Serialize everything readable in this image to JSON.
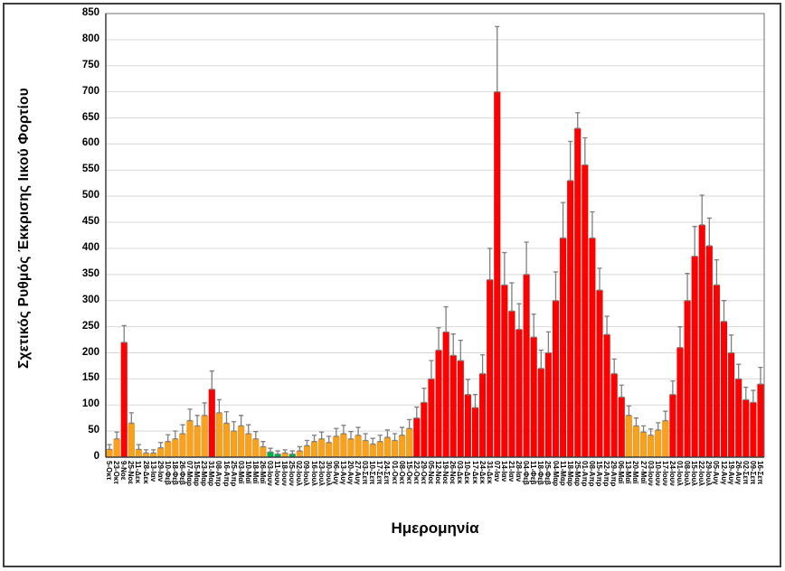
{
  "figure": {
    "background": "#ffffff",
    "frame_border_color": "#3f3f3f"
  },
  "chart_data": {
    "type": "bar",
    "title": "",
    "xlabel": "Ημερομηνία",
    "ylabel": "Σχετικός Ρυθμός Έκκρισης Ιικού Φορτίου",
    "ylim": [
      0,
      850
    ],
    "ytick_step": 50,
    "yticks": [
      0,
      50,
      100,
      150,
      200,
      250,
      300,
      350,
      400,
      450,
      500,
      550,
      600,
      650,
      700,
      750,
      800,
      850
    ],
    "grid": "horizontal",
    "legend_position": "none",
    "error_bars": true,
    "colors": {
      "high": "#FF0000",
      "medium": "#F9A11B",
      "low": "#00B050",
      "error": "#7F7F7F",
      "grid": "#D8D8D8",
      "plot_border": "#6e6e6e",
      "axis": "#3f3f3f"
    },
    "level_names": {
      "h": "high (red)",
      "m": "medium (orange)",
      "l": "low (green)"
    },
    "categories": [
      "5-Οκτ",
      "23-Οκτ",
      "9-Νοε",
      "25-Νοε",
      "11-Δεκ",
      "28-Δεκ",
      "13-Ιαν",
      "29-Ιαν",
      "10-Φεβ",
      "18-Φεβ",
      "26-Φεβ",
      "07-Μαρ",
      "15-Μαρ",
      "23-Μαρ",
      "31-Μαρ",
      "08-Απρ",
      "16-Απρ",
      "25-Απρ",
      "03-Μαϊ",
      "10-Μαϊ",
      "18-Μαϊ",
      "26-Μαϊ",
      "03-Ιουν",
      "11-Ιουν",
      "18-Ιουν",
      "25-Ιουν",
      "02-Ιουλ",
      "09-Ιουλ",
      "16-Ιουλ",
      "23-Ιουλ",
      "30-Ιουλ",
      "06-Αυγ",
      "13-Αυγ",
      "20-Αυγ",
      "27-Αυγ",
      "03-Σεπ",
      "10-Σεπ",
      "17-Σεπ",
      "24-Σεπ",
      "01-Οκτ",
      "08-Οκτ",
      "15-Οκτ",
      "22-Οκτ",
      "29-Οκτ",
      "05-Νοε",
      "12-Νοε",
      "19-Νοε",
      "26-Νοε",
      "03-Δεκ",
      "10-Δεκ",
      "17-Δεκ",
      "24-Δεκ",
      "31-Δεκ",
      "07-Ιαν",
      "14-Ιαν",
      "21-Ιαν",
      "28-Ιαν",
      "04-Φεβ",
      "11-Φεβ",
      "18-Φεβ",
      "25-Φεβ",
      "04-Μαρ",
      "11-Μαρ",
      "18-Μαρ",
      "25-Μαρ",
      "01-Απρ",
      "08-Απρ",
      "15-Απρ",
      "22-Απρ",
      "29-Απρ",
      "06-Μαϊ",
      "13-Μαϊ",
      "20-Μαϊ",
      "27-Μαϊ",
      "03-Ιουν",
      "10-Ιουν",
      "17-Ιουν",
      "24-Ιουν",
      "01-Ιουλ",
      "08-Ιουλ",
      "15-Ιουλ",
      "22-Ιουλ",
      "29-Ιουλ",
      "05-Αυγ",
      "12-Αυγ",
      "19-Αυγ",
      "26-Αυγ",
      "02-Σεπ",
      "09-Σεπ",
      "16-Σεπ"
    ],
    "values": [
      15,
      35,
      220,
      65,
      15,
      8,
      8,
      18,
      30,
      35,
      45,
      70,
      60,
      80,
      130,
      85,
      65,
      50,
      60,
      45,
      35,
      20,
      10,
      6,
      8,
      6,
      12,
      22,
      30,
      35,
      28,
      40,
      45,
      35,
      42,
      32,
      25,
      30,
      38,
      32,
      42,
      55,
      75,
      105,
      150,
      205,
      240,
      195,
      185,
      120,
      95,
      160,
      340,
      700,
      330,
      280,
      245,
      350,
      230,
      170,
      200,
      300,
      420,
      530,
      630,
      560,
      420,
      320,
      235,
      160,
      115,
      80,
      60,
      48,
      42,
      52,
      70,
      120,
      210,
      300,
      385,
      445,
      405,
      330,
      260,
      200,
      150,
      110,
      105,
      140
    ],
    "error_upper": [
      24,
      48,
      252,
      85,
      24,
      14,
      14,
      28,
      43,
      50,
      62,
      92,
      80,
      104,
      165,
      110,
      87,
      68,
      80,
      62,
      49,
      30,
      17,
      12,
      14,
      12,
      20,
      32,
      42,
      48,
      40,
      55,
      61,
      49,
      57,
      45,
      36,
      42,
      52,
      45,
      57,
      72,
      96,
      132,
      185,
      248,
      288,
      236,
      224,
      149,
      120,
      196,
      400,
      825,
      392,
      334,
      294,
      412,
      274,
      205,
      240,
      355,
      488,
      605,
      660,
      612,
      470,
      362,
      270,
      188,
      138,
      98,
      75,
      60,
      54,
      66,
      88,
      146,
      250,
      352,
      442,
      502,
      458,
      378,
      300,
      234,
      178,
      134,
      128,
      172
    ],
    "levels": [
      "m",
      "m",
      "h",
      "m",
      "m",
      "m",
      "m",
      "m",
      "m",
      "m",
      "m",
      "m",
      "m",
      "m",
      "h",
      "m",
      "m",
      "m",
      "m",
      "m",
      "m",
      "m",
      "l",
      "l",
      "m",
      "l",
      "m",
      "m",
      "m",
      "m",
      "m",
      "m",
      "m",
      "m",
      "m",
      "m",
      "m",
      "m",
      "m",
      "m",
      "m",
      "m",
      "h",
      "h",
      "h",
      "h",
      "h",
      "h",
      "h",
      "h",
      "h",
      "h",
      "h",
      "h",
      "h",
      "h",
      "h",
      "h",
      "h",
      "h",
      "h",
      "h",
      "h",
      "h",
      "h",
      "h",
      "h",
      "h",
      "h",
      "h",
      "h",
      "m",
      "m",
      "m",
      "m",
      "m",
      "m",
      "h",
      "h",
      "h",
      "h",
      "h",
      "h",
      "h",
      "h",
      "h",
      "h",
      "h",
      "h",
      "h"
    ]
  }
}
